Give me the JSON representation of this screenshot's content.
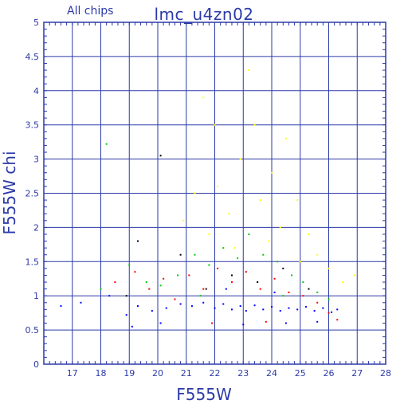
{
  "title": "lmc_u4zn02",
  "subtitle": "All chips",
  "chart_data": {
    "type": "scatter",
    "xlabel": "F555W",
    "ylabel": "F555W chi",
    "xlim": [
      16,
      28
    ],
    "ylim": [
      0,
      5
    ],
    "x_ticks": [
      "17",
      "18",
      "19",
      "20",
      "21",
      "22",
      "23",
      "24",
      "25",
      "26",
      "27",
      "28"
    ],
    "y_ticks": [
      "0",
      "0.5",
      "1",
      "1.5",
      "2",
      "2.5",
      "3",
      "3.5",
      "4",
      "4.5",
      "5"
    ],
    "grid": true,
    "legend": "none",
    "series": [
      {
        "color": "#0000ff",
        "points": [
          [
            16.6,
            0.85
          ],
          [
            17.3,
            0.9
          ],
          [
            18.3,
            1.0
          ],
          [
            18.9,
            0.72
          ],
          [
            19.3,
            0.85
          ],
          [
            19.8,
            0.78
          ],
          [
            20.3,
            0.82
          ],
          [
            20.8,
            0.88
          ],
          [
            21.2,
            0.85
          ],
          [
            21.6,
            0.9
          ],
          [
            22.0,
            0.82
          ],
          [
            22.3,
            0.88
          ],
          [
            22.6,
            0.8
          ],
          [
            22.9,
            0.85
          ],
          [
            23.1,
            0.78
          ],
          [
            23.4,
            0.86
          ],
          [
            23.7,
            0.8
          ],
          [
            24.0,
            0.84
          ],
          [
            24.3,
            0.78
          ],
          [
            24.6,
            0.82
          ],
          [
            24.9,
            0.8
          ],
          [
            25.2,
            0.84
          ],
          [
            25.5,
            0.78
          ],
          [
            25.8,
            0.82
          ],
          [
            26.1,
            0.76
          ],
          [
            26.3,
            0.8
          ],
          [
            20.1,
            0.6
          ],
          [
            23.0,
            0.58
          ],
          [
            24.5,
            0.6
          ],
          [
            25.6,
            0.62
          ],
          [
            19.1,
            0.55
          ],
          [
            22.4,
            1.1
          ],
          [
            24.1,
            1.05
          ]
        ]
      },
      {
        "color": "#ff0000",
        "points": [
          [
            18.5,
            1.2
          ],
          [
            19.2,
            1.35
          ],
          [
            19.7,
            1.1
          ],
          [
            20.2,
            1.25
          ],
          [
            20.6,
            0.95
          ],
          [
            21.1,
            1.3
          ],
          [
            21.6,
            1.1
          ],
          [
            22.1,
            1.4
          ],
          [
            22.6,
            1.2
          ],
          [
            23.1,
            1.35
          ],
          [
            23.6,
            1.1
          ],
          [
            24.1,
            1.25
          ],
          [
            24.6,
            1.05
          ],
          [
            25.1,
            1.0
          ],
          [
            25.6,
            0.9
          ],
          [
            26.0,
            0.75
          ],
          [
            21.9,
            0.6
          ],
          [
            23.8,
            0.62
          ],
          [
            26.3,
            0.65
          ]
        ]
      },
      {
        "color": "#00cc00",
        "points": [
          [
            18.2,
            3.22
          ],
          [
            18.0,
            1.1
          ],
          [
            19.0,
            1.45
          ],
          [
            19.6,
            1.2
          ],
          [
            20.1,
            1.15
          ],
          [
            20.7,
            1.3
          ],
          [
            21.3,
            1.6
          ],
          [
            21.8,
            1.45
          ],
          [
            22.3,
            1.7
          ],
          [
            22.8,
            1.55
          ],
          [
            23.2,
            1.9
          ],
          [
            23.7,
            1.6
          ],
          [
            24.2,
            1.5
          ],
          [
            24.7,
            1.3
          ],
          [
            25.1,
            1.2
          ],
          [
            25.6,
            1.05
          ],
          [
            26.0,
            0.95
          ],
          [
            21.5,
            1.0
          ],
          [
            24.4,
            1.0
          ]
        ]
      },
      {
        "color": "#ffff00",
        "points": [
          [
            20.9,
            2.1
          ],
          [
            21.3,
            2.5
          ],
          [
            21.8,
            1.9
          ],
          [
            22.1,
            2.6
          ],
          [
            22.0,
            3.5
          ],
          [
            22.5,
            2.2
          ],
          [
            22.9,
            3.0
          ],
          [
            23.2,
            4.3
          ],
          [
            23.4,
            3.5
          ],
          [
            23.6,
            2.4
          ],
          [
            24.0,
            2.8
          ],
          [
            24.3,
            2.0
          ],
          [
            24.5,
            3.3
          ],
          [
            24.9,
            2.4
          ],
          [
            25.3,
            1.9
          ],
          [
            25.6,
            1.6
          ],
          [
            26.0,
            1.4
          ],
          [
            26.5,
            1.2
          ],
          [
            26.9,
            1.3
          ],
          [
            21.6,
            3.9
          ],
          [
            23.9,
            1.8
          ],
          [
            22.7,
            1.7
          ],
          [
            25.0,
            1.5
          ]
        ]
      },
      {
        "color": "#000000",
        "points": [
          [
            19.3,
            1.8
          ],
          [
            20.1,
            3.05
          ],
          [
            20.8,
            1.6
          ],
          [
            21.7,
            1.1
          ],
          [
            22.6,
            1.3
          ],
          [
            23.5,
            1.2
          ],
          [
            24.4,
            1.4
          ],
          [
            25.3,
            1.1
          ],
          [
            18.9,
            1.0
          ]
        ]
      }
    ]
  }
}
